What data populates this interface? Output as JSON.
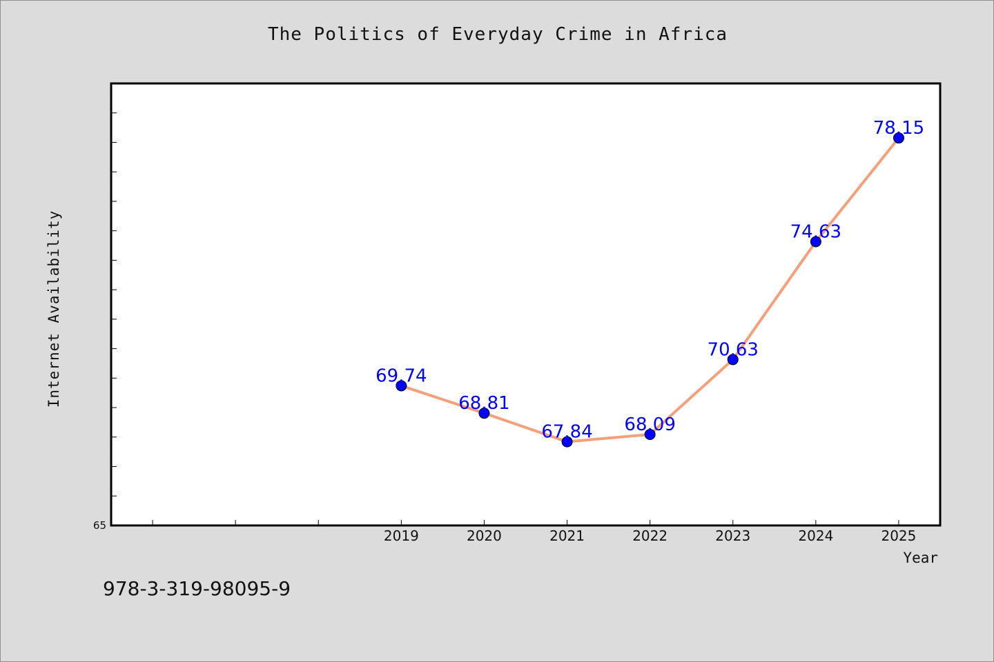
{
  "chart_data": {
    "type": "line",
    "title": "The Politics of Everyday Crime in Africa",
    "xlabel": "Year",
    "ylabel": "Internet Availability",
    "x": [
      2019,
      2020,
      2021,
      2022,
      2023,
      2024,
      2025
    ],
    "series": [
      {
        "values": [
          69.74,
          68.81,
          67.84,
          68.09,
          70.63,
          74.63,
          78.15
        ],
        "labels": [
          "69.74",
          "68.81",
          "67.84",
          "68.09",
          "70.63",
          "74.63",
          "78.15"
        ]
      }
    ],
    "xlim": [
      2015.5,
      2025.5
    ],
    "ylim": [
      65,
      80
    ],
    "y_tick_labels": [
      "65"
    ],
    "grid": false,
    "legend": "none"
  },
  "footer": {
    "code": "978-3-319-98095-9"
  },
  "colors": {
    "background": "#dcdcdc",
    "plot_background": "#ffffff",
    "line": "#f4a07a",
    "marker": "#0000ff",
    "data_label": "#0000ff"
  }
}
